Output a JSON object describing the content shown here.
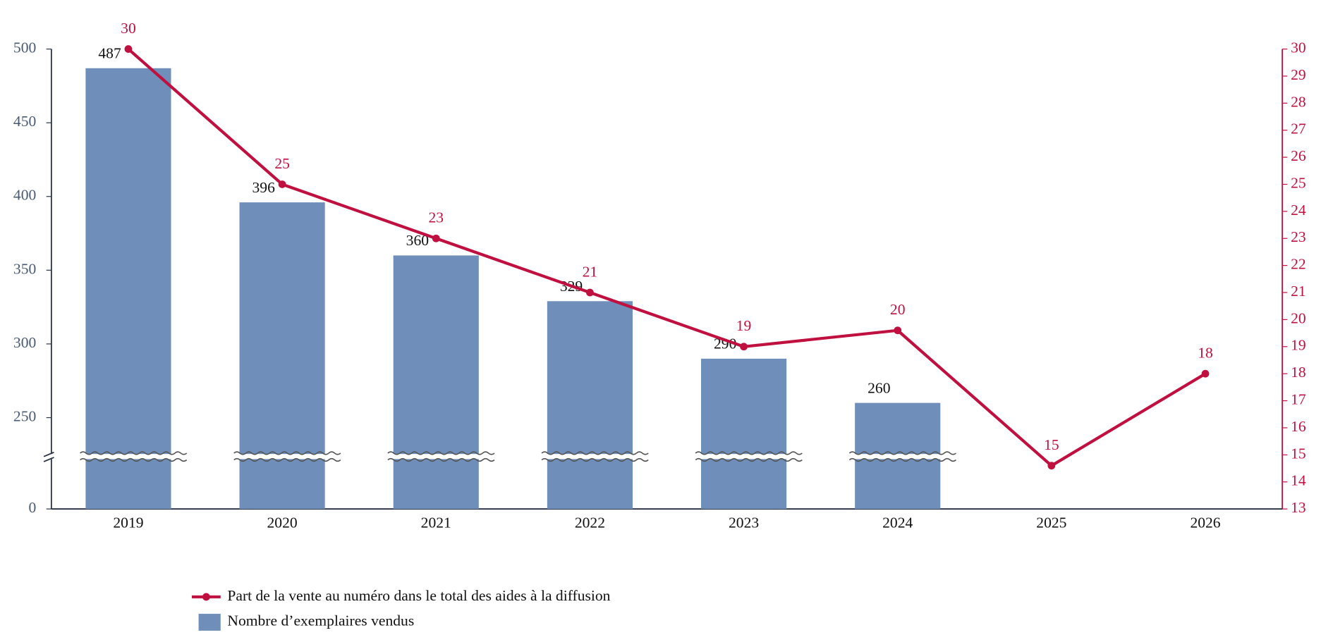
{
  "chart_data": {
    "type": "bar",
    "categories": [
      "2019",
      "2020",
      "2021",
      "2022",
      "2023",
      "2024",
      "2025",
      "2026"
    ],
    "series": [
      {
        "name": "Part de la vente au numéro dans le total des aides à la diffusion",
        "type": "line",
        "axis": "y2",
        "color": "#c0103f",
        "values": [
          30,
          25,
          23,
          21,
          19,
          19.6,
          14.6,
          18
        ],
        "value_labels": [
          "30",
          "25",
          "23",
          "21",
          "19",
          "20",
          "15",
          "18"
        ]
      },
      {
        "name": "Nombre d’exemplaires vendus",
        "type": "bar",
        "color": "#6f8fba",
        "values": [
          487,
          396,
          360,
          329,
          290,
          260,
          null,
          null
        ]
      }
    ],
    "ylim": [
      0,
      500
    ],
    "yticks": [
      0,
      250,
      300,
      350,
      400,
      450,
      500
    ],
    "axis_break": true,
    "y2lim": [
      13,
      30
    ],
    "y2ticks": [
      13,
      14,
      15,
      16,
      17,
      18,
      19,
      20,
      21,
      22,
      23,
      24,
      25,
      26,
      27,
      28,
      29,
      30
    ],
    "grid": false
  }
}
